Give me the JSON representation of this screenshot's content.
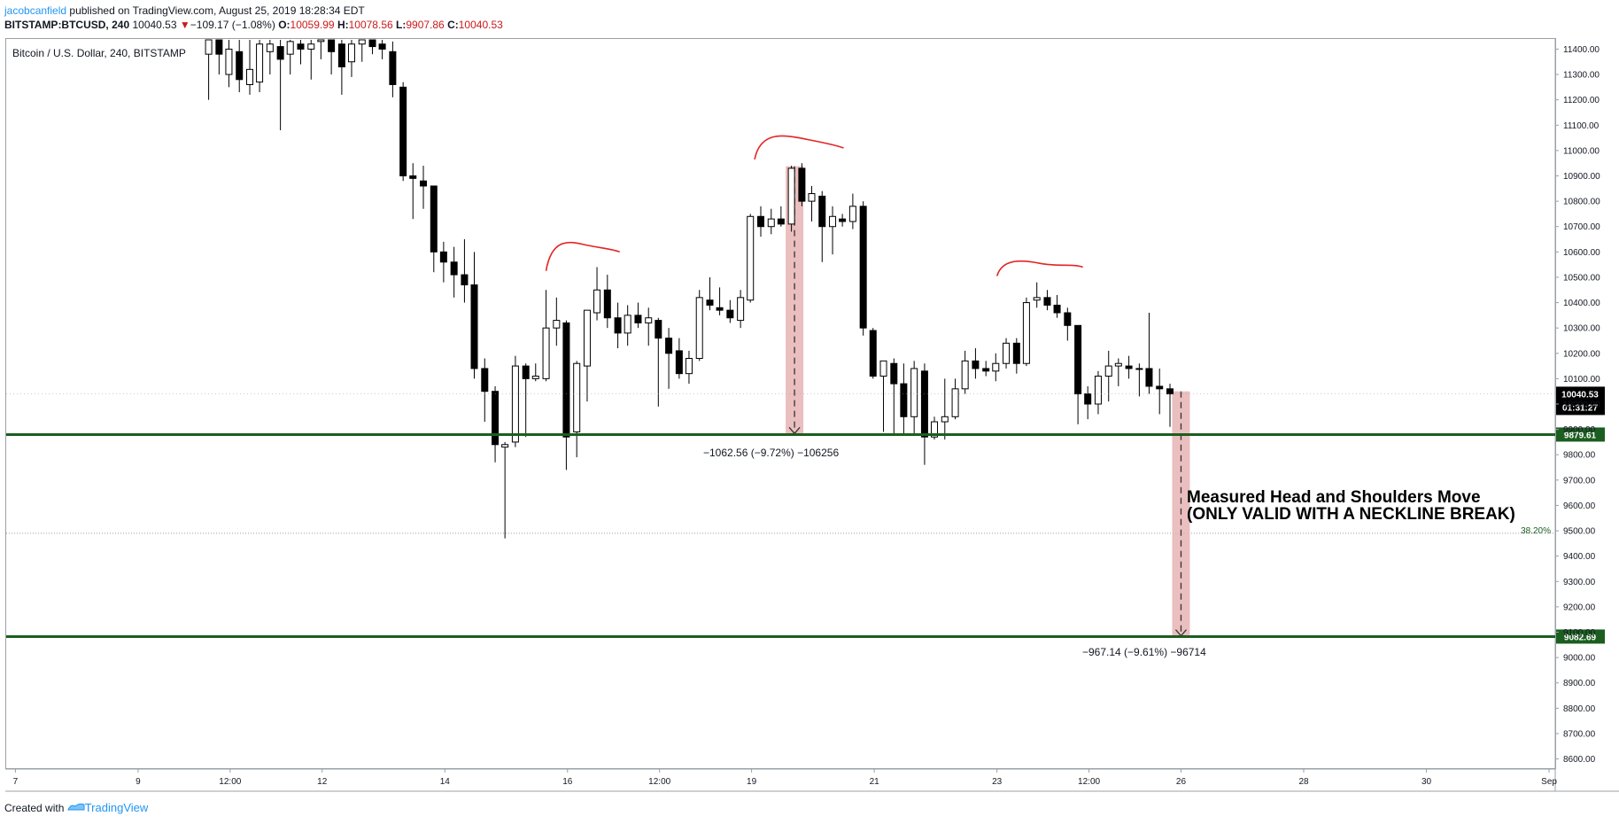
{
  "header": {
    "author": "jacobcanfield",
    "published": "published on TradingView.com, August 25, 2019 18:28:34 EDT",
    "symbol": "BITSTAMP:BTCUSD, 240",
    "last": "10040.53",
    "change_arrow": "▼",
    "change": "−109.17 (−1.08%)",
    "o_label": "O:",
    "o": "10059.99",
    "h_label": "H:",
    "h": "10078.56",
    "l_label": "L:",
    "l": "9907.86",
    "c_label": "C:",
    "c": "10040.53"
  },
  "chart_title": "Bitcoin / U.S. Dollar, 240, BITSTAMP",
  "footer": {
    "created_with": "Created with",
    "brand": "TradingView",
    "brand_icon": "tradingview-logo-icon"
  },
  "colors": {
    "up_fill": "#ffffff",
    "down_fill": "#000000",
    "candle_stroke": "#000000",
    "level_line": "#1b5e20",
    "level_label_bg": "#1b5e20",
    "fib_line": "#9e9e9e",
    "fib_text": "#1b5e20",
    "measure_fill": "#e8b4b4",
    "arc": "#e32424",
    "last_price_bg": "#000000"
  },
  "annotations": {
    "measure1_label": "−1062.56 (−9.72%) −106256",
    "measure2_label": "−967.14 (−9.61%) −96714",
    "pattern_text_line1": "Measured Head and Shoulders Move",
    "pattern_text_line2": "(ONLY VALID WITH A NECKLINE BREAK)",
    "fib_label": "38.20%"
  },
  "chart_data": {
    "type": "candlestick",
    "title": "Bitcoin / U.S. Dollar, 240, BITSTAMP",
    "ylim": [
      8560,
      11440
    ],
    "yticks": [
      11400,
      11300,
      11200,
      11100,
      11000,
      10900,
      10800,
      10700,
      10600,
      10500,
      10400,
      10300,
      10200,
      10100,
      10000,
      9900,
      9800,
      9700,
      9600,
      9500,
      9400,
      9300,
      9200,
      9100,
      9000,
      8900,
      8800,
      8700,
      8600
    ],
    "xlim": [
      6.85,
      32.1
    ],
    "x_ticks": [
      {
        "x": 7,
        "label": "7"
      },
      {
        "x": 9,
        "label": "9"
      },
      {
        "x": 10.5,
        "label": "12:00"
      },
      {
        "x": 12,
        "label": "12"
      },
      {
        "x": 14,
        "label": "14"
      },
      {
        "x": 16,
        "label": "16"
      },
      {
        "x": 17.5,
        "label": "12:00"
      },
      {
        "x": 19,
        "label": "19"
      },
      {
        "x": 21,
        "label": "21"
      },
      {
        "x": 23,
        "label": "23"
      },
      {
        "x": 24.5,
        "label": "12:00"
      },
      {
        "x": 26,
        "label": "26"
      },
      {
        "x": 28,
        "label": "28"
      },
      {
        "x": 30,
        "label": "30"
      },
      {
        "x": 32,
        "label": "Sep"
      }
    ],
    "candles": [
      {
        "x": 10.15,
        "o": 11380,
        "h": 11460,
        "l": 11200,
        "c": 11440
      },
      {
        "x": 10.32,
        "o": 11440,
        "h": 11460,
        "l": 11300,
        "c": 11380
      },
      {
        "x": 10.48,
        "o": 11300,
        "h": 11440,
        "l": 11250,
        "c": 11400
      },
      {
        "x": 10.65,
        "o": 11390,
        "h": 11440,
        "l": 11230,
        "c": 11280
      },
      {
        "x": 10.82,
        "o": 11260,
        "h": 11440,
        "l": 11220,
        "c": 11320
      },
      {
        "x": 10.98,
        "o": 11270,
        "h": 11460,
        "l": 11230,
        "c": 11420
      },
      {
        "x": 11.15,
        "o": 11390,
        "h": 11460,
        "l": 11300,
        "c": 11420
      },
      {
        "x": 11.32,
        "o": 11410,
        "h": 11440,
        "l": 11080,
        "c": 11360
      },
      {
        "x": 11.48,
        "o": 11380,
        "h": 11440,
        "l": 11300,
        "c": 11430
      },
      {
        "x": 11.65,
        "o": 11420,
        "h": 11460,
        "l": 11340,
        "c": 11400
      },
      {
        "x": 11.82,
        "o": 11400,
        "h": 11460,
        "l": 11280,
        "c": 11420
      },
      {
        "x": 11.98,
        "o": 11430,
        "h": 11460,
        "l": 11360,
        "c": 11440
      },
      {
        "x": 12.15,
        "o": 11440,
        "h": 11460,
        "l": 11300,
        "c": 11390
      },
      {
        "x": 12.32,
        "o": 11420,
        "h": 11460,
        "l": 11220,
        "c": 11330
      },
      {
        "x": 12.48,
        "o": 11350,
        "h": 11440,
        "l": 11290,
        "c": 11420
      },
      {
        "x": 12.65,
        "o": 11420,
        "h": 11460,
        "l": 11350,
        "c": 11440
      },
      {
        "x": 12.82,
        "o": 11440,
        "h": 11460,
        "l": 11380,
        "c": 11410
      },
      {
        "x": 12.98,
        "o": 11420,
        "h": 11440,
        "l": 11360,
        "c": 11400
      },
      {
        "x": 13.15,
        "o": 11390,
        "h": 11430,
        "l": 11210,
        "c": 11260
      },
      {
        "x": 13.32,
        "o": 11250,
        "h": 11270,
        "l": 10880,
        "c": 10900
      },
      {
        "x": 13.48,
        "o": 10900,
        "h": 10950,
        "l": 10730,
        "c": 10890
      },
      {
        "x": 13.65,
        "o": 10880,
        "h": 10940,
        "l": 10770,
        "c": 10860
      },
      {
        "x": 13.82,
        "o": 10860,
        "h": 10860,
        "l": 10520,
        "c": 10600
      },
      {
        "x": 13.98,
        "o": 10600,
        "h": 10640,
        "l": 10480,
        "c": 10560
      },
      {
        "x": 14.15,
        "o": 10560,
        "h": 10620,
        "l": 10420,
        "c": 10510
      },
      {
        "x": 14.32,
        "o": 10510,
        "h": 10650,
        "l": 10400,
        "c": 10470
      },
      {
        "x": 14.48,
        "o": 10470,
        "h": 10600,
        "l": 10100,
        "c": 10140
      },
      {
        "x": 14.65,
        "o": 10140,
        "h": 10180,
        "l": 9930,
        "c": 10050
      },
      {
        "x": 14.82,
        "o": 10050,
        "h": 10070,
        "l": 9770,
        "c": 9840
      },
      {
        "x": 14.98,
        "o": 9830,
        "h": 9850,
        "l": 9470,
        "c": 9840
      },
      {
        "x": 15.15,
        "o": 9850,
        "h": 10190,
        "l": 9830,
        "c": 10150
      },
      {
        "x": 15.32,
        "o": 10150,
        "h": 10160,
        "l": 9870,
        "c": 10100
      },
      {
        "x": 15.48,
        "o": 10100,
        "h": 10160,
        "l": 10090,
        "c": 10110
      },
      {
        "x": 15.65,
        "o": 10100,
        "h": 10450,
        "l": 10090,
        "c": 10300
      },
      {
        "x": 15.82,
        "o": 10300,
        "h": 10420,
        "l": 10230,
        "c": 10330
      },
      {
        "x": 15.98,
        "o": 10320,
        "h": 10330,
        "l": 9740,
        "c": 9870
      },
      {
        "x": 16.15,
        "o": 9890,
        "h": 10170,
        "l": 9790,
        "c": 10160
      },
      {
        "x": 16.32,
        "o": 10150,
        "h": 10370,
        "l": 10010,
        "c": 10370
      },
      {
        "x": 16.48,
        "o": 10360,
        "h": 10540,
        "l": 10330,
        "c": 10450
      },
      {
        "x": 16.65,
        "o": 10450,
        "h": 10510,
        "l": 10300,
        "c": 10340
      },
      {
        "x": 16.82,
        "o": 10340,
        "h": 10400,
        "l": 10220,
        "c": 10280
      },
      {
        "x": 16.98,
        "o": 10280,
        "h": 10390,
        "l": 10230,
        "c": 10350
      },
      {
        "x": 17.15,
        "o": 10350,
        "h": 10400,
        "l": 10300,
        "c": 10320
      },
      {
        "x": 17.32,
        "o": 10320,
        "h": 10380,
        "l": 10230,
        "c": 10340
      },
      {
        "x": 17.48,
        "o": 10330,
        "h": 10340,
        "l": 9990,
        "c": 10260
      },
      {
        "x": 17.65,
        "o": 10260,
        "h": 10300,
        "l": 10060,
        "c": 10200
      },
      {
        "x": 17.82,
        "o": 10210,
        "h": 10260,
        "l": 10100,
        "c": 10120
      },
      {
        "x": 17.98,
        "o": 10120,
        "h": 10210,
        "l": 10080,
        "c": 10180
      },
      {
        "x": 18.15,
        "o": 10180,
        "h": 10450,
        "l": 10170,
        "c": 10420
      },
      {
        "x": 18.32,
        "o": 10410,
        "h": 10500,
        "l": 10370,
        "c": 10390
      },
      {
        "x": 18.48,
        "o": 10380,
        "h": 10460,
        "l": 10350,
        "c": 10370
      },
      {
        "x": 18.65,
        "o": 10370,
        "h": 10410,
        "l": 10320,
        "c": 10340
      },
      {
        "x": 18.82,
        "o": 10330,
        "h": 10450,
        "l": 10300,
        "c": 10420
      },
      {
        "x": 18.98,
        "o": 10410,
        "h": 10750,
        "l": 10400,
        "c": 10740
      },
      {
        "x": 19.15,
        "o": 10740,
        "h": 10780,
        "l": 10660,
        "c": 10700
      },
      {
        "x": 19.32,
        "o": 10700,
        "h": 10770,
        "l": 10670,
        "c": 10730
      },
      {
        "x": 19.48,
        "o": 10730,
        "h": 10780,
        "l": 10700,
        "c": 10710
      },
      {
        "x": 19.65,
        "o": 10710,
        "h": 10940,
        "l": 10680,
        "c": 10930
      },
      {
        "x": 19.82,
        "o": 10930,
        "h": 10950,
        "l": 10780,
        "c": 10800
      },
      {
        "x": 19.98,
        "o": 10800,
        "h": 10860,
        "l": 10720,
        "c": 10830
      },
      {
        "x": 20.15,
        "o": 10820,
        "h": 10840,
        "l": 10560,
        "c": 10700
      },
      {
        "x": 20.32,
        "o": 10700,
        "h": 10780,
        "l": 10590,
        "c": 10740
      },
      {
        "x": 20.48,
        "o": 10730,
        "h": 10750,
        "l": 10700,
        "c": 10720
      },
      {
        "x": 20.65,
        "o": 10720,
        "h": 10830,
        "l": 10690,
        "c": 10780
      },
      {
        "x": 20.82,
        "o": 10780,
        "h": 10800,
        "l": 10270,
        "c": 10300
      },
      {
        "x": 20.98,
        "o": 10290,
        "h": 10300,
        "l": 10100,
        "c": 10110
      },
      {
        "x": 21.15,
        "o": 10110,
        "h": 10170,
        "l": 9890,
        "c": 10170
      },
      {
        "x": 21.32,
        "o": 10160,
        "h": 10180,
        "l": 9880,
        "c": 10080
      },
      {
        "x": 21.48,
        "o": 10080,
        "h": 10160,
        "l": 9880,
        "c": 9950
      },
      {
        "x": 21.65,
        "o": 9950,
        "h": 10170,
        "l": 9880,
        "c": 10140
      },
      {
        "x": 21.82,
        "o": 10130,
        "h": 10160,
        "l": 9760,
        "c": 9870
      },
      {
        "x": 21.98,
        "o": 9870,
        "h": 9950,
        "l": 9860,
        "c": 9930
      },
      {
        "x": 22.15,
        "o": 9930,
        "h": 10100,
        "l": 9860,
        "c": 9950
      },
      {
        "x": 22.32,
        "o": 9950,
        "h": 10100,
        "l": 9940,
        "c": 10060
      },
      {
        "x": 22.48,
        "o": 10060,
        "h": 10210,
        "l": 10040,
        "c": 10170
      },
      {
        "x": 22.65,
        "o": 10170,
        "h": 10220,
        "l": 10100,
        "c": 10140
      },
      {
        "x": 22.82,
        "o": 10140,
        "h": 10170,
        "l": 10110,
        "c": 10130
      },
      {
        "x": 22.98,
        "o": 10130,
        "h": 10200,
        "l": 10090,
        "c": 10160
      },
      {
        "x": 23.15,
        "o": 10160,
        "h": 10260,
        "l": 10140,
        "c": 10240
      },
      {
        "x": 23.32,
        "o": 10240,
        "h": 10260,
        "l": 10120,
        "c": 10160
      },
      {
        "x": 23.48,
        "o": 10160,
        "h": 10420,
        "l": 10150,
        "c": 10400
      },
      {
        "x": 23.65,
        "o": 10410,
        "h": 10480,
        "l": 10380,
        "c": 10420
      },
      {
        "x": 23.82,
        "o": 10420,
        "h": 10450,
        "l": 10370,
        "c": 10390
      },
      {
        "x": 23.98,
        "o": 10390,
        "h": 10430,
        "l": 10340,
        "c": 10360
      },
      {
        "x": 24.15,
        "o": 10360,
        "h": 10380,
        "l": 10250,
        "c": 10310
      },
      {
        "x": 24.32,
        "o": 10310,
        "h": 10310,
        "l": 9920,
        "c": 10040
      },
      {
        "x": 24.48,
        "o": 10040,
        "h": 10070,
        "l": 9940,
        "c": 10000
      },
      {
        "x": 24.65,
        "o": 10000,
        "h": 10130,
        "l": 9960,
        "c": 10110
      },
      {
        "x": 24.82,
        "o": 10110,
        "h": 10210,
        "l": 10010,
        "c": 10150
      },
      {
        "x": 24.98,
        "o": 10150,
        "h": 10180,
        "l": 10070,
        "c": 10160
      },
      {
        "x": 25.15,
        "o": 10150,
        "h": 10190,
        "l": 10100,
        "c": 10140
      },
      {
        "x": 25.32,
        "o": 10140,
        "h": 10160,
        "l": 10030,
        "c": 10140
      },
      {
        "x": 25.48,
        "o": 10140,
        "h": 10360,
        "l": 10040,
        "c": 10070
      },
      {
        "x": 25.65,
        "o": 10070,
        "h": 10140,
        "l": 9960,
        "c": 10060
      },
      {
        "x": 25.82,
        "o": 10060,
        "h": 10080,
        "l": 9910,
        "c": 10040
      }
    ],
    "levels": [
      {
        "value": 9879.61,
        "label": "9879.61"
      },
      {
        "value": 9082.69,
        "label": "9082.69"
      }
    ],
    "fib_level": {
      "value": 9490,
      "label": "38.20%"
    },
    "last_price": {
      "value": 10040.53,
      "label": "10040.53",
      "countdown": "01:31:27"
    },
    "measures": [
      {
        "x": 19.7,
        "from": 10938,
        "to": 9880
      },
      {
        "x": 26.0,
        "from": 10050,
        "to": 9082
      }
    ],
    "arcs": [
      {
        "x0": 15.65,
        "x1": 16.85,
        "y0": 10525,
        "peak": 10630,
        "y1": 10600
      },
      {
        "x0": 19.05,
        "x1": 20.5,
        "y0": 10965,
        "peak": 11050,
        "y1": 11010
      },
      {
        "x0": 23.0,
        "x1": 24.4,
        "y0": 10505,
        "peak": 10555,
        "y1": 10540
      }
    ]
  }
}
